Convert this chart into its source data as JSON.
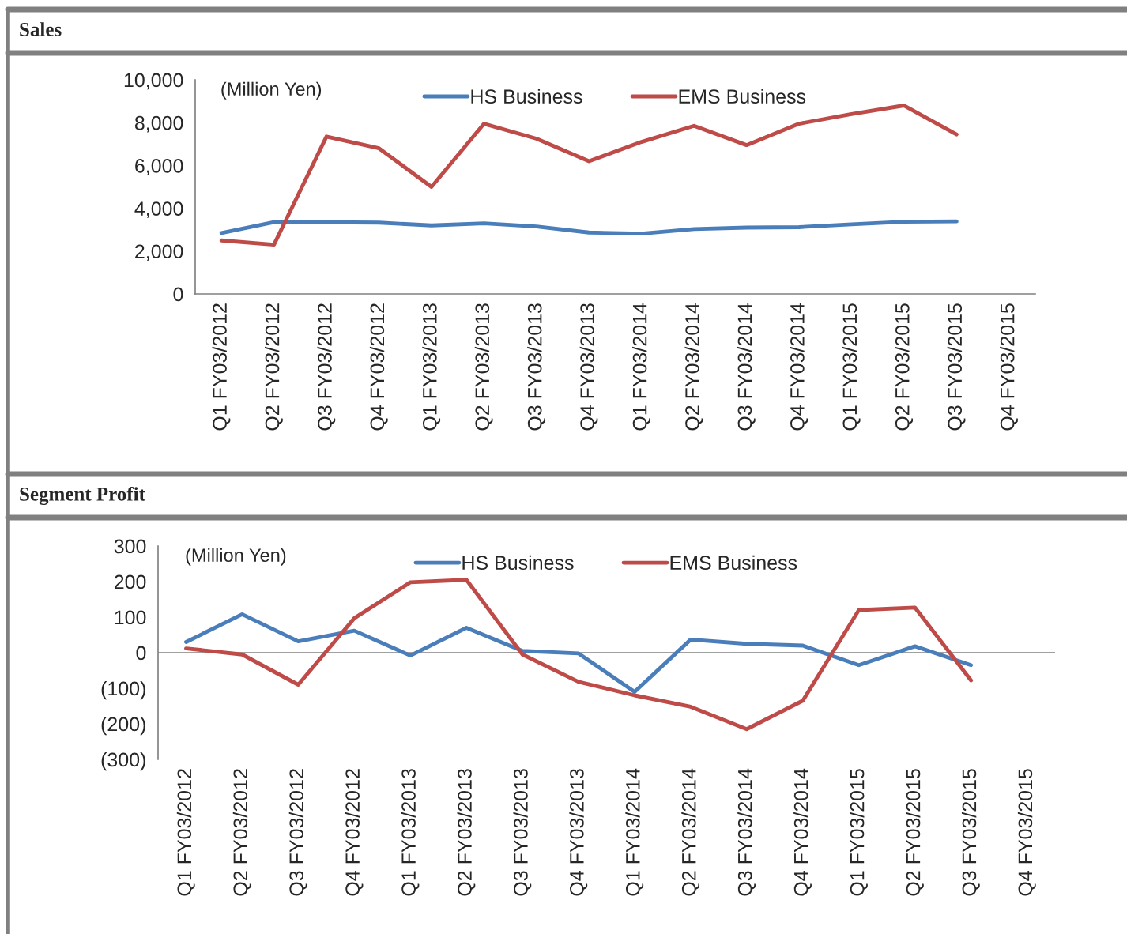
{
  "chart_data": [
    {
      "type": "line",
      "title": "Sales",
      "annotations": [
        "(Million Yen)"
      ],
      "categories": [
        "Q1 FY03/2012",
        "Q2 FY03/2012",
        "Q3 FY03/2012",
        "Q4 FY03/2012",
        "Q1 FY03/2013",
        "Q2 FY03/2013",
        "Q3 FY03/2013",
        "Q4 FY03/2013",
        "Q1 FY03/2014",
        "Q2 FY03/2014",
        "Q3 FY03/2014",
        "Q4 FY03/2014",
        "Q1 FY03/2015",
        "Q2 FY03/2015",
        "Q3 FY03/2015",
        "Q4 FY03/2015"
      ],
      "series": [
        {
          "name": "HS Business",
          "color": "#4a7ebb",
          "values": [
            2850,
            3350,
            3350,
            3330,
            3200,
            3300,
            3150,
            2870,
            2820,
            3030,
            3100,
            3120,
            3250,
            3370,
            3390,
            null
          ]
        },
        {
          "name": "EMS Business",
          "color": "#be4b48",
          "values": [
            2500,
            2300,
            7350,
            6800,
            5000,
            7950,
            7250,
            6200,
            7100,
            7850,
            6950,
            7950,
            8400,
            8800,
            7450,
            null
          ]
        }
      ],
      "ylim": [
        0,
        10000
      ],
      "yticks": [
        {
          "value": 0,
          "label": "0"
        },
        {
          "value": 2000,
          "label": "2,000"
        },
        {
          "value": 4000,
          "label": "4,000"
        },
        {
          "value": 6000,
          "label": "6,000"
        },
        {
          "value": 8000,
          "label": "8,000"
        },
        {
          "value": 10000,
          "label": "10,000"
        }
      ],
      "grid": false,
      "legend": "top",
      "marker": "none",
      "line_style": "solid"
    },
    {
      "type": "line",
      "title": "Segment Profit",
      "annotations": [
        "(Million Yen)"
      ],
      "categories": [
        "Q1 FY03/2012",
        "Q2 FY03/2012",
        "Q3 FY03/2012",
        "Q4 FY03/2012",
        "Q1 FY03/2013",
        "Q2 FY03/2013",
        "Q3 FY03/2013",
        "Q4 FY03/2013",
        "Q1 FY03/2014",
        "Q2 FY03/2014",
        "Q3 FY03/2014",
        "Q4 FY03/2014",
        "Q1 FY03/2015",
        "Q2 FY03/2015",
        "Q3 FY03/2015",
        "Q4 FY03/2015"
      ],
      "series": [
        {
          "name": "HS Business",
          "color": "#4a7ebb",
          "values": [
            30,
            108,
            32,
            62,
            -8,
            70,
            5,
            -2,
            -110,
            37,
            25,
            20,
            -35,
            18,
            -35,
            null
          ]
        },
        {
          "name": "EMS Business",
          "color": "#be4b48",
          "values": [
            12,
            -5,
            -90,
            97,
            198,
            205,
            -5,
            -82,
            -120,
            -152,
            -215,
            -135,
            120,
            127,
            -78,
            null
          ]
        }
      ],
      "ylim": [
        -300,
        300
      ],
      "yticks": [
        {
          "value": -300,
          "label": "(300)"
        },
        {
          "value": -200,
          "label": "(200)"
        },
        {
          "value": -100,
          "label": "(100)"
        },
        {
          "value": 0,
          "label": "0"
        },
        {
          "value": 100,
          "label": "100"
        },
        {
          "value": 200,
          "label": "200"
        },
        {
          "value": 300,
          "label": "300"
        }
      ],
      "ref_lines": [
        {
          "axis": "y",
          "value": 0,
          "color": "#808080"
        }
      ],
      "grid": false,
      "legend": "top",
      "marker": "none",
      "line_style": "solid"
    }
  ]
}
